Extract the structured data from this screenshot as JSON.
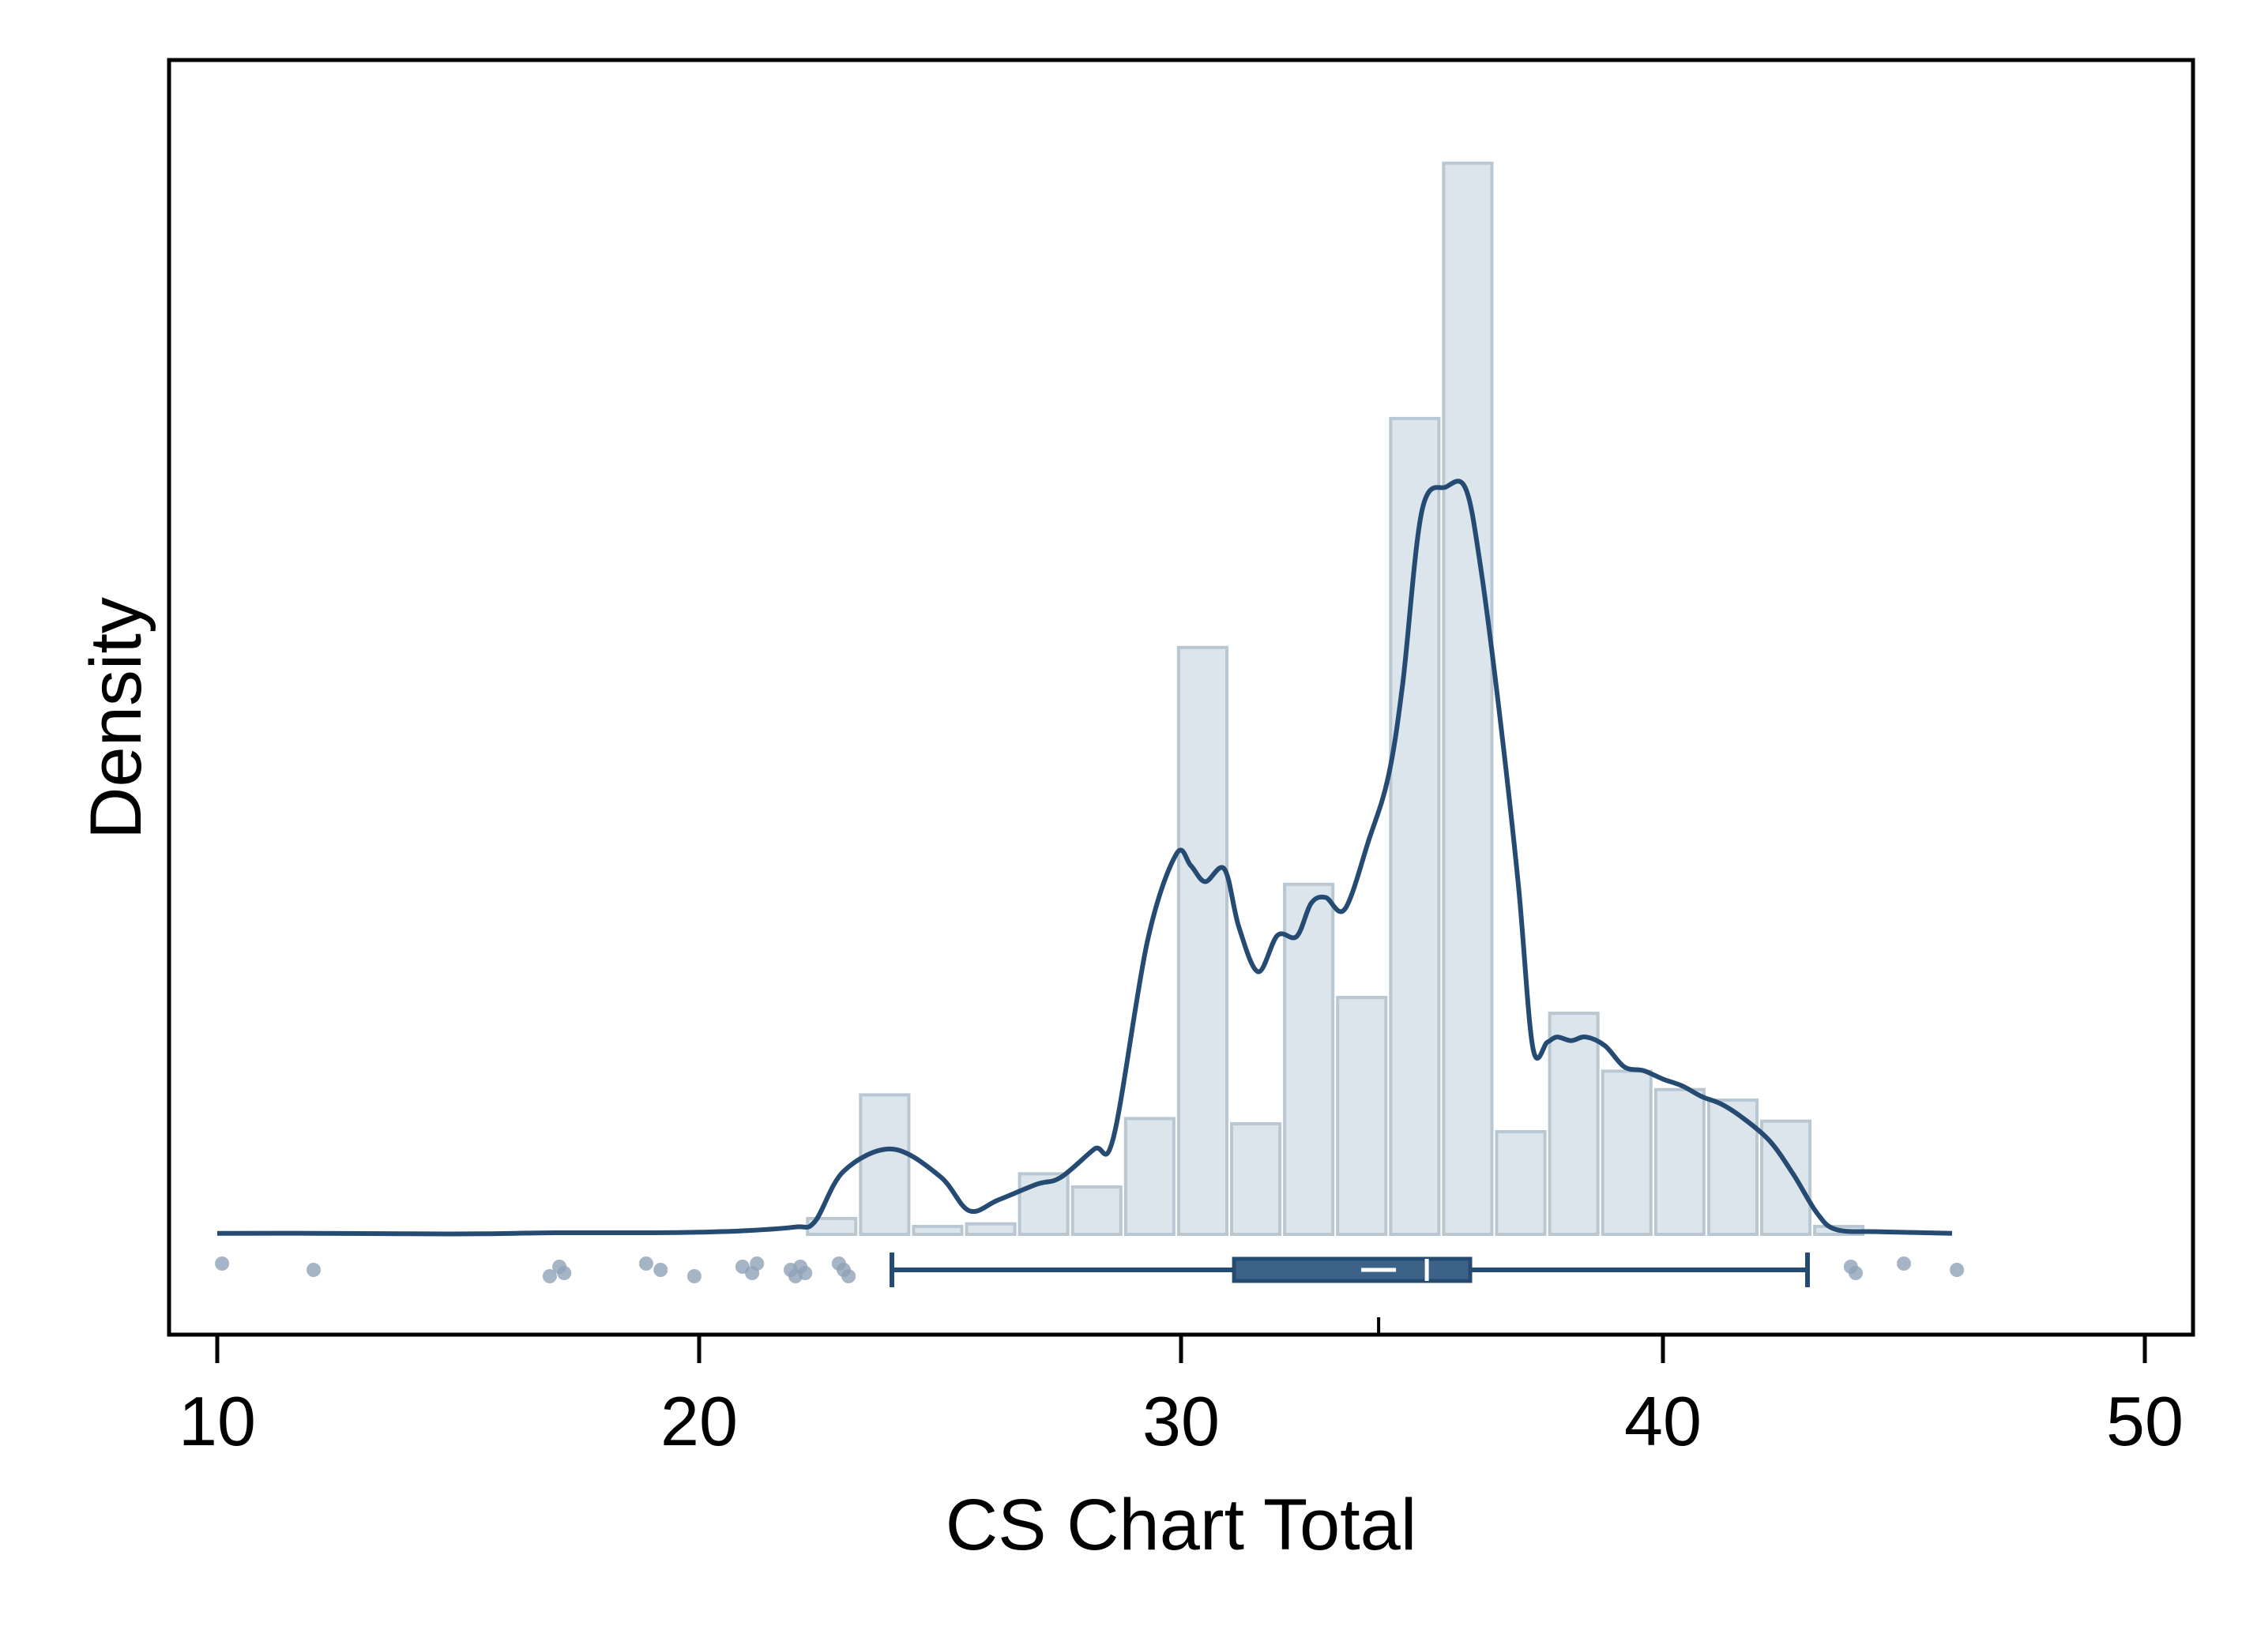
{
  "chart_data": {
    "type": "bar",
    "xlabel": "CS Chart Total",
    "ylabel": "Density",
    "xlim": [
      9,
      51
    ],
    "ylim": [
      0,
      0.215
    ],
    "xticks": [
      10,
      20,
      30,
      40,
      50
    ],
    "grid": false,
    "legend": "none",
    "colors": {
      "bar_fill": "#dce4ec",
      "bar_edge": "#b9c7d3",
      "density_line": "#264b73",
      "box_fill": "#3d6288",
      "box_line": "#264b73",
      "outlier": "#8ea3b8",
      "median": "#ffffff",
      "frame": "#000000"
    },
    "histogram": {
      "bin_width": 1.1,
      "bin_starts": [
        22.2,
        23.3,
        24.4,
        25.5,
        26.6,
        27.7,
        28.8,
        29.9,
        31.0,
        32.1,
        33.2,
        34.3,
        35.4,
        36.5,
        37.6,
        38.7,
        39.8,
        40.9,
        42.0,
        43.1
      ],
      "densities": [
        0.003,
        0.0265,
        0.0015,
        0.002,
        0.0115,
        0.009,
        0.022,
        0.1115,
        0.021,
        0.0665,
        0.045,
        0.155,
        0.2035,
        0.0195,
        0.042,
        0.031,
        0.0275,
        0.0255,
        0.0215,
        0.0015
      ]
    },
    "density_curve": {
      "x": [
        10,
        12,
        14,
        15.5,
        17,
        19,
        20,
        21,
        22,
        22.4,
        23,
        24,
        25,
        25.6,
        26.2,
        27,
        27.5,
        28.2,
        28.6,
        29.3,
        29.9,
        30.2,
        30.5,
        30.9,
        31.2,
        31.6,
        32.0,
        32.4,
        32.7,
        33.0,
        33.4,
        33.9,
        34.3,
        34.6,
        35.0,
        35.5,
        35.9,
        36.2,
        36.6,
        37.0,
        37.3,
        37.6,
        37.8,
        38.1,
        38.4,
        38.8,
        39.2,
        39.6,
        40.0,
        40.4,
        40.8,
        41.2,
        41.6,
        42.2,
        42.7,
        43.2,
        43.6,
        44.5,
        46.0
      ],
      "y": [
        0.0002,
        0.0002,
        0.0001,
        0.0001,
        0.0003,
        0.0003,
        0.0004,
        0.0007,
        0.0014,
        0.0024,
        0.012,
        0.0162,
        0.011,
        0.0045,
        0.0065,
        0.0095,
        0.0108,
        0.0162,
        0.0185,
        0.0556,
        0.0722,
        0.0701,
        0.067,
        0.0694,
        0.0584,
        0.0499,
        0.0568,
        0.0566,
        0.0629,
        0.064,
        0.0618,
        0.075,
        0.0869,
        0.1046,
        0.1375,
        0.142,
        0.1418,
        0.1278,
        0.0996,
        0.0664,
        0.0355,
        0.0365,
        0.0375,
        0.0368,
        0.0375,
        0.0358,
        0.0318,
        0.0311,
        0.0295,
        0.0282,
        0.0262,
        0.0248,
        0.0225,
        0.0179,
        0.0115,
        0.004,
        0.0009,
        0.0005,
        0.0002
      ]
    },
    "boxplot": {
      "whisker_low": 24,
      "q1": 31.1,
      "median": 35.1,
      "mean": 34.1,
      "q3": 36.0,
      "whisker_high": 43.0,
      "outliers": [
        10.1,
        12.0,
        16.9,
        17.1,
        17.2,
        18.9,
        19.2,
        19.9,
        20.9,
        21.1,
        21.2,
        21.9,
        22.0,
        22.1,
        22.2,
        22.9,
        23.0,
        23.1,
        43.9,
        44.0,
        45.0,
        46.1
      ]
    }
  }
}
